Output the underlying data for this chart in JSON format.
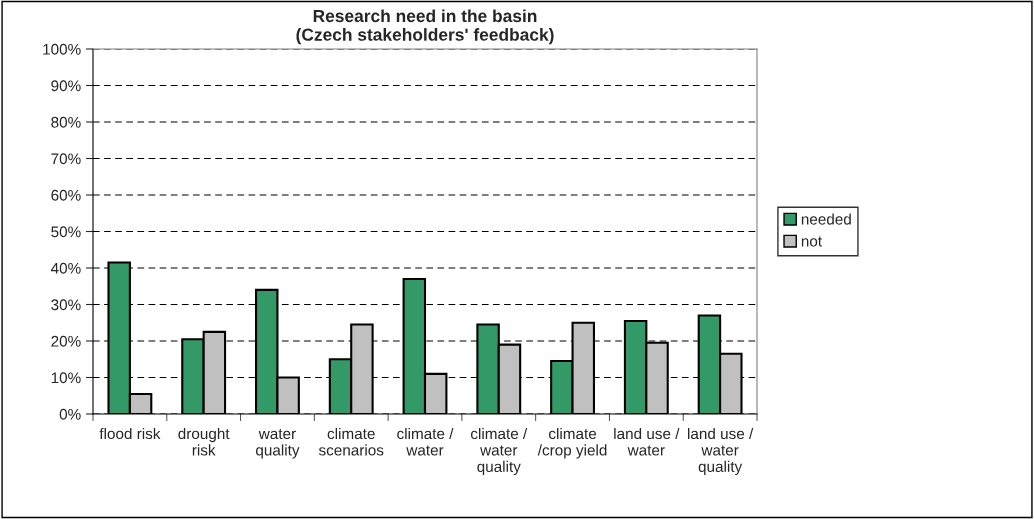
{
  "chart_data": {
    "type": "bar",
    "title": "Research need in the basin\n(Czech stakeholders' feedback)",
    "categories": [
      "flood risk",
      "drought\nrisk",
      "water\nquality",
      "climate\nscenarios",
      "climate /\nwater",
      "climate /\nwater\nquality",
      "climate\n/crop yield",
      "land use /\nwater",
      "land use /\nwater\nquality"
    ],
    "series": [
      {
        "name": "needed",
        "color": "#339966",
        "values": [
          41.5,
          20.5,
          34,
          15,
          37,
          24.5,
          14.5,
          25.5,
          27
        ]
      },
      {
        "name": "not",
        "color": "#c0c0c0",
        "values": [
          5.5,
          22.5,
          10,
          24.5,
          11,
          19,
          25,
          19.5,
          16.5
        ]
      }
    ],
    "ylim": [
      0,
      100
    ],
    "yticks": [
      {
        "value": 0,
        "label": "0%"
      },
      {
        "value": 10,
        "label": "10%"
      },
      {
        "value": 20,
        "label": "20%"
      },
      {
        "value": 30,
        "label": "30%"
      },
      {
        "value": 40,
        "label": "40%"
      },
      {
        "value": 50,
        "label": "50%"
      },
      {
        "value": 60,
        "label": "60%"
      },
      {
        "value": 70,
        "label": "70%"
      },
      {
        "value": 80,
        "label": "80%"
      },
      {
        "value": 90,
        "label": "90%"
      },
      {
        "value": 100,
        "label": "100%"
      }
    ],
    "grid": "y",
    "legend": "right"
  }
}
